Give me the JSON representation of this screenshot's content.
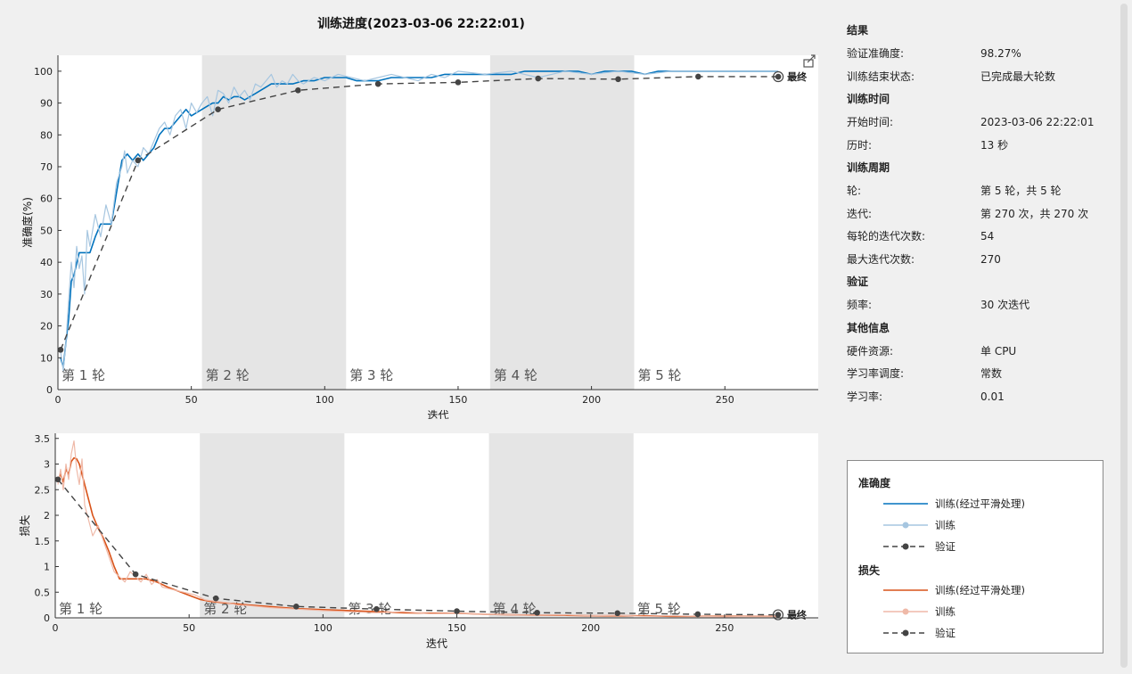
{
  "title": "训练进度(2023-03-06 22:22:01)",
  "colors": {
    "acc_smooth": "#0072bd",
    "acc_raw": "#a6c6e0",
    "loss_smooth": "#d95319",
    "loss_raw": "#efb9a8",
    "validation": "#444444",
    "epoch_shade": "#e5e5e5"
  },
  "epochs": {
    "iterations_per_epoch": 54,
    "labels": [
      "第 1 轮",
      "第 2 轮",
      "第 3 轮",
      "第 4 轮",
      "第 5 轮"
    ]
  },
  "final_label": "最终",
  "icons": {
    "export": "export-icon"
  },
  "chart_data": [
    {
      "type": "line",
      "xlabel": "迭代",
      "ylabel": "准确度(%)",
      "xlim": [
        0,
        285
      ],
      "ylim": [
        0,
        105
      ],
      "xticks": [
        0,
        50,
        100,
        150,
        200,
        250
      ],
      "yticks": [
        0,
        10,
        20,
        30,
        40,
        50,
        60,
        70,
        80,
        90,
        100
      ],
      "series": [
        {
          "name": "训练(经过平滑处理)",
          "style": "smooth",
          "x": [
            1,
            2,
            3,
            4,
            5,
            6,
            8,
            10,
            12,
            14,
            16,
            18,
            20,
            22,
            24,
            26,
            28,
            30,
            32,
            34,
            36,
            38,
            40,
            42,
            44,
            46,
            48,
            50,
            52,
            54,
            56,
            58,
            60,
            62,
            64,
            66,
            68,
            70,
            72,
            74,
            76,
            78,
            80,
            84,
            88,
            92,
            96,
            100,
            104,
            108,
            112,
            116,
            120,
            125,
            130,
            135,
            140,
            145,
            150,
            155,
            160,
            165,
            170,
            175,
            180,
            185,
            190,
            195,
            200,
            205,
            210,
            215,
            220,
            225,
            230,
            235,
            240,
            245,
            250,
            255,
            260,
            265,
            270
          ],
          "y": [
            10,
            7,
            15,
            22,
            34,
            36,
            43,
            43,
            43,
            48,
            52,
            52,
            52,
            62,
            72,
            74,
            72,
            74,
            72,
            74,
            76,
            80,
            82,
            82,
            84,
            86,
            88,
            86,
            87,
            88,
            89,
            90,
            90,
            92,
            91,
            92,
            92,
            91,
            92,
            93,
            94,
            95,
            96,
            96,
            96,
            97,
            97,
            98,
            98,
            98,
            97,
            97,
            97,
            98,
            98,
            98,
            98,
            99,
            99,
            99,
            99,
            99,
            99,
            100,
            100,
            100,
            100,
            100,
            99,
            100,
            100,
            100,
            99,
            100,
            100,
            100,
            100,
            100,
            100,
            100,
            100,
            100,
            100
          ]
        },
        {
          "name": "训练",
          "style": "raw",
          "x": [
            1,
            2,
            3,
            4,
            5,
            6,
            7,
            8,
            9,
            10,
            11,
            12,
            14,
            16,
            18,
            20,
            22,
            24,
            25,
            26,
            28,
            30,
            32,
            34,
            36,
            38,
            40,
            42,
            44,
            46,
            48,
            50,
            52,
            54,
            56,
            58,
            60,
            62,
            64,
            66,
            68,
            70,
            72,
            74,
            76,
            78,
            80,
            82,
            84,
            86,
            88,
            90,
            92,
            96,
            100,
            105,
            110,
            115,
            120,
            125,
            130,
            135,
            140,
            145,
            150,
            160,
            170,
            180,
            190,
            200,
            210,
            220,
            230,
            240,
            250,
            260,
            270
          ],
          "y": [
            12,
            6,
            15,
            28,
            40,
            32,
            45,
            38,
            42,
            30,
            50,
            45,
            55,
            48,
            58,
            52,
            65,
            70,
            75,
            68,
            72,
            70,
            76,
            74,
            78,
            82,
            84,
            80,
            86,
            88,
            82,
            90,
            87,
            90,
            92,
            86,
            94,
            93,
            90,
            95,
            92,
            94,
            91,
            96,
            95,
            97,
            99,
            95,
            97,
            96,
            99,
            97,
            96,
            98,
            97,
            99,
            98,
            97,
            98,
            99,
            98,
            97,
            99,
            98,
            100,
            99,
            100,
            98,
            100,
            99,
            100,
            99,
            100,
            100,
            100,
            100,
            100
          ]
        },
        {
          "name": "验证",
          "style": "validation",
          "x": [
            1,
            30,
            60,
            90,
            120,
            150,
            180,
            210,
            240,
            270
          ],
          "y": [
            12.5,
            72,
            88,
            94,
            96,
            96.5,
            97.7,
            97.5,
            98.3,
            98.27
          ]
        }
      ]
    },
    {
      "type": "line",
      "xlabel": "迭代",
      "ylabel": "损失",
      "xlim": [
        0,
        285
      ],
      "ylim": [
        0,
        3.6
      ],
      "xticks": [
        0,
        50,
        100,
        150,
        200,
        250
      ],
      "yticks": [
        0,
        0.5,
        1,
        1.5,
        2,
        2.5,
        3,
        3.5
      ],
      "series": [
        {
          "name": "训练(经过平滑处理)",
          "style": "smooth",
          "x": [
            1,
            2,
            3,
            4,
            5,
            6,
            7,
            8,
            9,
            10,
            12,
            14,
            16,
            18,
            20,
            22,
            24,
            26,
            28,
            30,
            34,
            38,
            42,
            46,
            50,
            54,
            58,
            62,
            66,
            70,
            80,
            90,
            100,
            110,
            120,
            130,
            140,
            150,
            160,
            170,
            180,
            190,
            200,
            210,
            220,
            230,
            240,
            250,
            260,
            270
          ],
          "y": [
            2.7,
            2.8,
            2.65,
            2.9,
            2.8,
            3.05,
            3.12,
            3.1,
            3.0,
            2.8,
            2.4,
            2.0,
            1.75,
            1.55,
            1.3,
            1.0,
            0.76,
            0.76,
            0.76,
            0.76,
            0.76,
            0.7,
            0.6,
            0.52,
            0.44,
            0.36,
            0.32,
            0.3,
            0.28,
            0.26,
            0.22,
            0.18,
            0.16,
            0.14,
            0.12,
            0.1,
            0.09,
            0.09,
            0.07,
            0.06,
            0.05,
            0.05,
            0.04,
            0.04,
            0.04,
            0.03,
            0.03,
            0.03,
            0.03,
            0.03
          ]
        },
        {
          "name": "训练",
          "style": "raw",
          "x": [
            1,
            2,
            3,
            4,
            5,
            6,
            7,
            8,
            9,
            10,
            11,
            12,
            14,
            16,
            18,
            20,
            22,
            24,
            26,
            28,
            30,
            32,
            34,
            36,
            38,
            40,
            44,
            48,
            52,
            56,
            60,
            64,
            68,
            72,
            80,
            90,
            100,
            110,
            120,
            130,
            140,
            150,
            160,
            170,
            180,
            190,
            200,
            210,
            220,
            230,
            240,
            250,
            260,
            270
          ],
          "y": [
            2.6,
            2.9,
            2.5,
            3.0,
            2.7,
            3.2,
            3.45,
            2.9,
            2.6,
            3.1,
            2.2,
            2.0,
            1.6,
            1.8,
            1.5,
            1.2,
            0.9,
            0.8,
            0.7,
            0.9,
            0.8,
            0.7,
            0.85,
            0.65,
            0.75,
            0.6,
            0.55,
            0.5,
            0.45,
            0.35,
            0.32,
            0.3,
            0.25,
            0.24,
            0.2,
            0.17,
            0.14,
            0.12,
            0.1,
            0.12,
            0.08,
            0.09,
            0.07,
            0.06,
            0.05,
            0.06,
            0.04,
            0.05,
            0.03,
            0.04,
            0.03,
            0.02,
            0.03,
            0.03
          ]
        },
        {
          "name": "验证",
          "style": "validation",
          "x": [
            1,
            30,
            60,
            90,
            120,
            150,
            180,
            210,
            240,
            270
          ],
          "y": [
            2.7,
            0.85,
            0.38,
            0.22,
            0.17,
            0.13,
            0.1,
            0.09,
            0.07,
            0.06
          ]
        }
      ]
    }
  ],
  "info": {
    "sections": [
      {
        "title": "结果",
        "rows": [
          {
            "key": "验证准确度:",
            "value": "98.27%"
          },
          {
            "key": "训练结束状态:",
            "value": "已完成最大轮数"
          }
        ]
      },
      {
        "title": "训练时间",
        "rows": [
          {
            "key": "开始时间:",
            "value": "2023-03-06 22:22:01"
          },
          {
            "key": "历时:",
            "value": "13 秒"
          }
        ]
      },
      {
        "title": "训练周期",
        "rows": [
          {
            "key": "轮:",
            "value": "第 5 轮，共 5 轮"
          },
          {
            "key": "迭代:",
            "value": "第 270 次，共 270 次"
          },
          {
            "key": "每轮的迭代次数:",
            "value": "54"
          },
          {
            "key": "最大迭代次数:",
            "value": "270"
          }
        ]
      },
      {
        "title": "验证",
        "rows": [
          {
            "key": "频率:",
            "value": "30 次迭代"
          }
        ]
      },
      {
        "title": "其他信息",
        "rows": [
          {
            "key": "硬件资源:",
            "value": "单 CPU"
          },
          {
            "key": "学习率调度:",
            "value": "常数"
          },
          {
            "key": "学习率:",
            "value": "0.01"
          }
        ]
      }
    ]
  },
  "legend": {
    "accuracy_title": "准确度",
    "loss_title": "损失",
    "accuracy_items": [
      "训练(经过平滑处理)",
      "训练",
      "验证"
    ],
    "loss_items": [
      "训练(经过平滑处理)",
      "训练",
      "验证"
    ]
  }
}
